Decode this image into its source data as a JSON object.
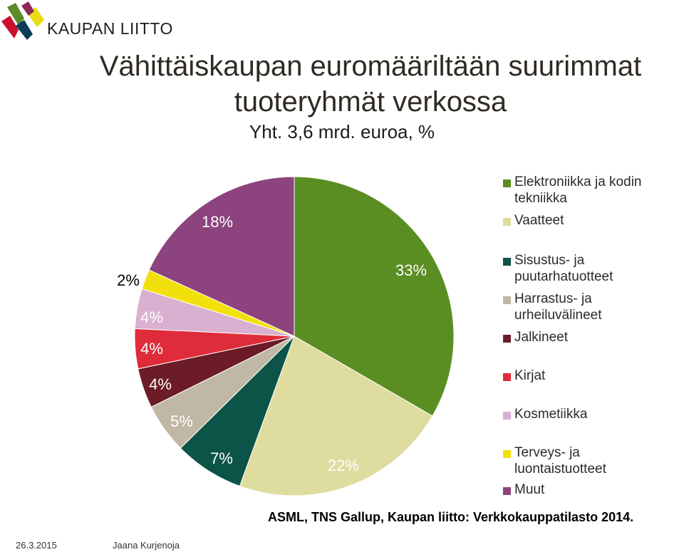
{
  "brand": {
    "name": "KAUPAN LIITTO",
    "colors": [
      "#c8102e",
      "#5c8b2a",
      "#e8dc10",
      "#0a3d57",
      "#8b2a5a"
    ]
  },
  "chart_data": {
    "type": "pie",
    "title": "Vähittäiskaupan euromääriltään suurimmat tuoteryhmät verkossa",
    "title_lines": [
      "Vähittäiskaupan euromääriltään suurimmat",
      "tuoteryhmät verkossa"
    ],
    "subtitle": "Yht. 3,6 mrd. euroa, %",
    "legend_position": "right",
    "slices": [
      {
        "name": "Elektroniikka ja kodin tekniikka",
        "value": 33,
        "label": "33%",
        "color": "#5a8d22"
      },
      {
        "name": "Vaatteet",
        "value": 22,
        "label": "22%",
        "color": "#dfdc9f"
      },
      {
        "name": "Sisustus- ja puutarhatuotteet",
        "value": 7,
        "label": "7%",
        "color": "#0b5447"
      },
      {
        "name": "Harrastus- ja urheiluvälineet",
        "value": 5,
        "label": "5%",
        "color": "#c0b7a4"
      },
      {
        "name": "Jalkineet",
        "value": 4,
        "label": "4%",
        "color": "#6b1c26"
      },
      {
        "name": "Kirjat",
        "value": 4,
        "label": "4%",
        "color": "#df2c3a"
      },
      {
        "name": "Kosmetiikka",
        "value": 4,
        "label": "4%",
        "color": "#d9b0d0"
      },
      {
        "name": "Terveys- ja luontaistuotteet",
        "value": 2,
        "label": "2%",
        "color": "#f2e00c"
      },
      {
        "name": "Muut",
        "value": 18,
        "label": "18%",
        "color": "#8c437e"
      }
    ],
    "legend_lines": [
      [
        "Elektroniikka ja kodin",
        "tekniikka"
      ],
      [
        "Vaatteet"
      ],
      [
        "Sisustus- ja",
        "puutarhatuotteet"
      ],
      [
        "Harrastus- ja",
        "urheiluvälineet"
      ],
      [
        "Jalkineet"
      ],
      [
        "Kirjat"
      ],
      [
        "Kosmetiikka"
      ],
      [
        "Terveys- ja",
        "luontaistuotteet"
      ],
      [
        "Muut"
      ]
    ]
  },
  "source": "ASML, TNS Gallup, Kaupan liitto: Verkkokauppatilasto 2014.",
  "footer": {
    "date": "26.3.2015",
    "author": "Jaana Kurjenoja"
  }
}
